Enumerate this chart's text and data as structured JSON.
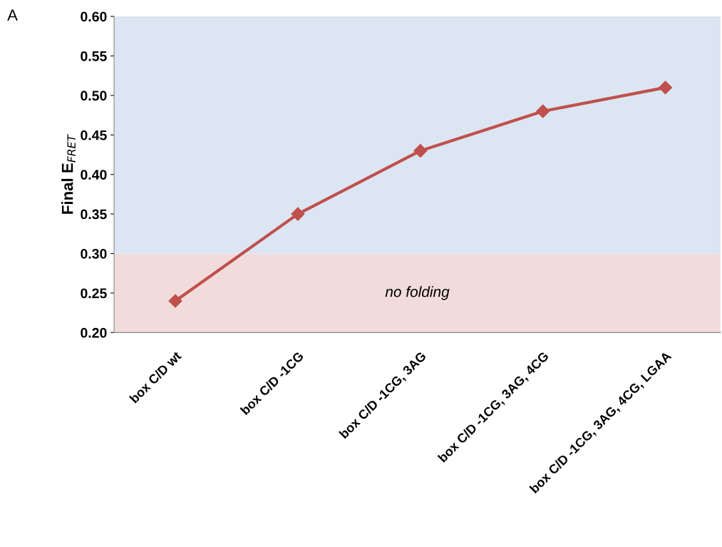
{
  "chart_data": {
    "type": "line",
    "ylabel": "Final E$_{FRET}$",
    "categories": [
      "box C/D wt",
      "box C/D -1CG",
      "box C/D -1CG, 3AG",
      "box C/D -1CG, 3AG, 4CG",
      "box C/D -1CG, 3AG, 4CG, LGAA"
    ],
    "series": [
      {
        "color": "#c0504d",
        "values": [
          0.24,
          0.35,
          0.43,
          0.48,
          0.51
        ]
      }
    ],
    "ylim": [
      0.2,
      0.6
    ],
    "yticks": [
      {
        "value": 0.2,
        "label": "0.20"
      },
      {
        "value": 0.25,
        "label": "0.25"
      },
      {
        "value": 0.3,
        "label": "0.30"
      },
      {
        "value": 0.35,
        "label": "0.35"
      },
      {
        "value": 0.4,
        "label": "0.40"
      },
      {
        "value": 0.45,
        "label": "0.45"
      },
      {
        "value": 0.5,
        "label": "0.50"
      },
      {
        "value": 0.55,
        "label": "0.55"
      },
      {
        "value": 0.6,
        "label": "0.60"
      }
    ],
    "bands": [
      {
        "axis": "y",
        "from": 0.2,
        "to": 0.3,
        "label": "no folding",
        "color": "#f2dcdb"
      },
      {
        "axis": "y",
        "from": 0.3,
        "to": 0.6,
        "color": "#dce6f2"
      }
    ],
    "annotations": [
      "A"
    ],
    "marker": "diamond",
    "line_style": "solid",
    "grid": false,
    "legend": false
  }
}
